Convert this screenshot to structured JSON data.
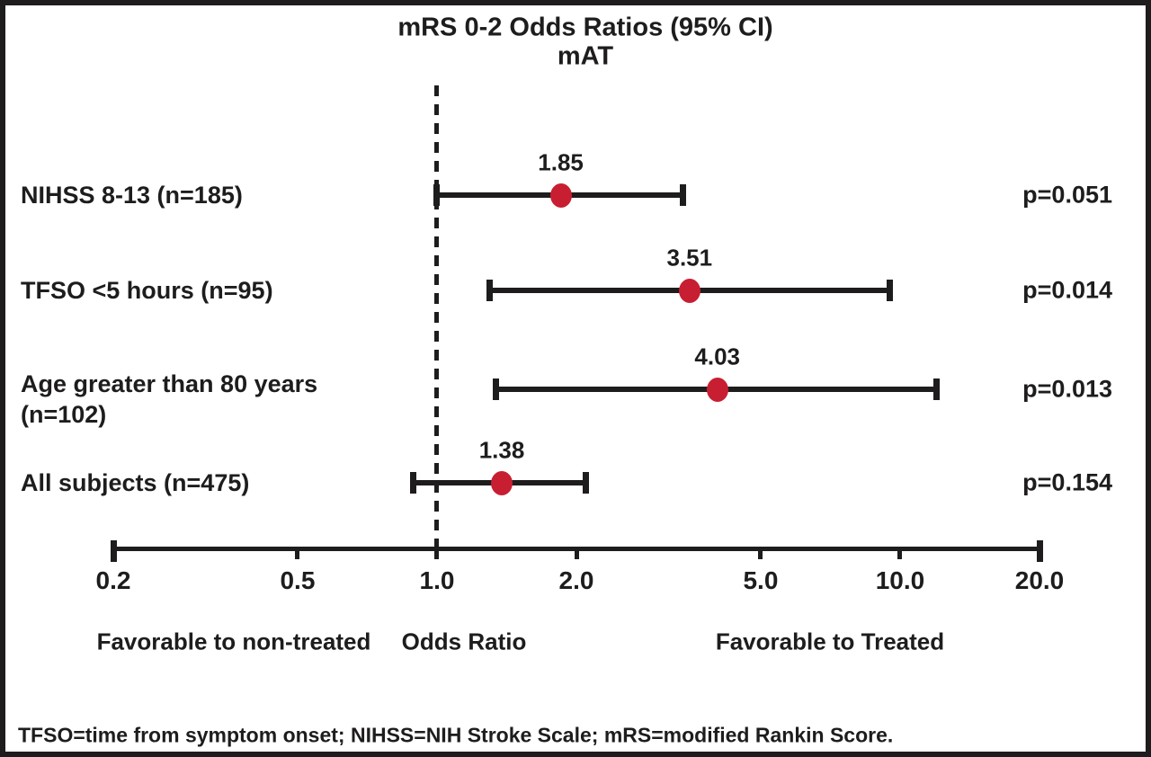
{
  "title": "mRS 0-2 Odds Ratios (95% CI)",
  "subtitle": "mAT",
  "footnote": "TFSO=time from symptom onset; NIHSS=NIH Stroke Scale; mRS=modified Rankin Score.",
  "colors": {
    "marker": "#c81e32",
    "ink": "#1e1c1d"
  },
  "chart_data": {
    "type": "scatter",
    "subtype": "forest-plot",
    "scale": "log10",
    "title": "mRS 0-2 Odds Ratios (95% CI)",
    "subtitle": "mAT",
    "xlabel": "Odds Ratio",
    "left_direction_label": "Favorable to non-treated",
    "right_direction_label": "Favorable to Treated",
    "axis": {
      "min": 0.2,
      "max": 20,
      "ticks": [
        0.2,
        0.5,
        1.0,
        2.0,
        5.0,
        10.0,
        20.0
      ],
      "tick_labels": [
        "0.2",
        "0.5",
        "1.0",
        "2.0",
        "5.0",
        "10.0",
        "20.0"
      ],
      "reference_line": 1.0,
      "grid": false
    },
    "rows": [
      {
        "label": "NIHSS 8-13 (n=185)",
        "estimate": 1.85,
        "estimate_label": "1.85",
        "ci_low": 1.0,
        "ci_high": 3.4,
        "p_label": "p=0.051"
      },
      {
        "label": "TFSO <5 hours (n=95)",
        "estimate": 3.51,
        "estimate_label": "3.51",
        "ci_low": 1.3,
        "ci_high": 9.5,
        "p_label": "p=0.014"
      },
      {
        "label": "Age greater than 80 years\n (n=102)",
        "estimate": 4.03,
        "estimate_label": "4.03",
        "ci_low": 1.34,
        "ci_high": 12.0,
        "p_label": "p=0.013"
      },
      {
        "label": "All subjects (n=475)",
        "estimate": 1.38,
        "estimate_label": "1.38",
        "ci_low": 0.89,
        "ci_high": 2.1,
        "p_label": "p=0.154"
      }
    ]
  }
}
